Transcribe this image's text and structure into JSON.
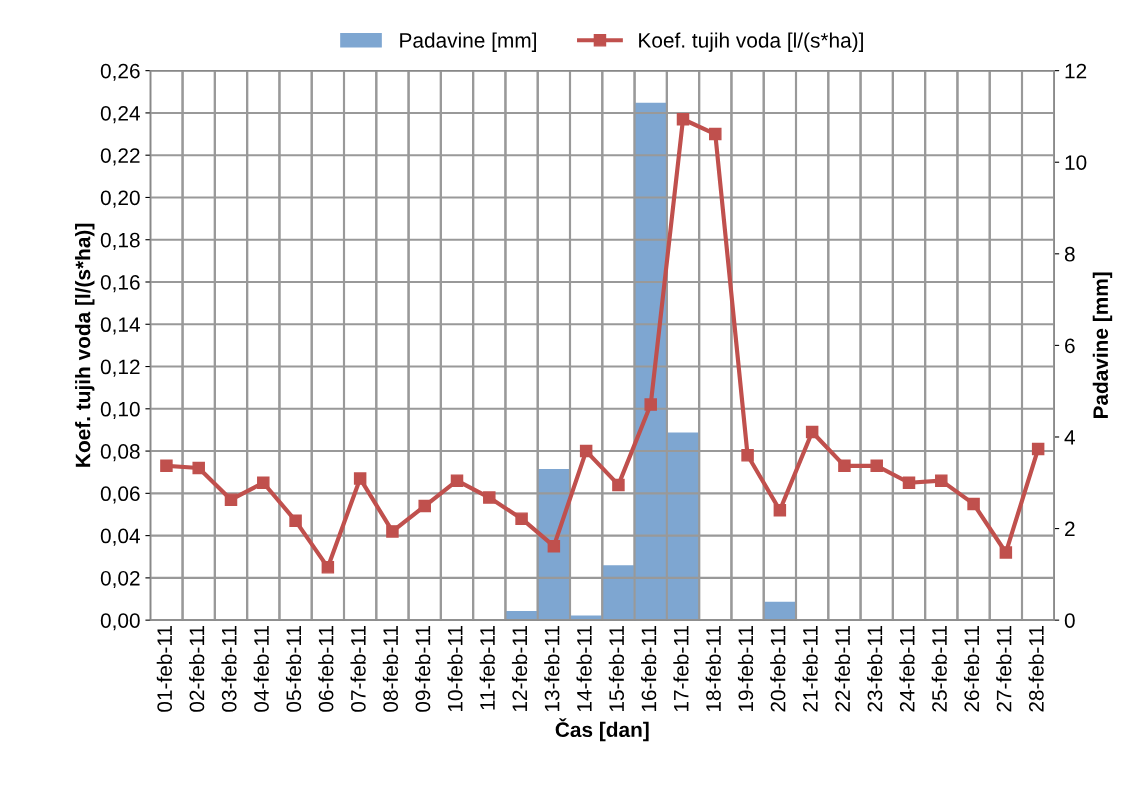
{
  "chart_data": {
    "type": "bar",
    "xlabel": "Čas [dan]",
    "ylabel": "Koef. tujih voda [l/(s*ha)]",
    "y2label": "Padavine [mm]",
    "categories": [
      "01-feb-11",
      "02-feb-11",
      "03-feb-11",
      "04-feb-11",
      "05-feb-11",
      "06-feb-11",
      "07-feb-11",
      "08-feb-11",
      "09-feb-11",
      "10-feb-11",
      "11-feb-11",
      "12-feb-11",
      "13-feb-11",
      "14-feb-11",
      "15-feb-11",
      "16-feb-11",
      "17-feb-11",
      "18-feb-11",
      "19-feb-11",
      "20-feb-11",
      "21-feb-11",
      "22-feb-11",
      "23-feb-11",
      "24-feb-11",
      "25-feb-11",
      "26-feb-11",
      "27-feb-11",
      "28-feb-11"
    ],
    "series": [
      {
        "name": "Padavine [mm]",
        "axis": "y2",
        "color": "#7ea6d1",
        "values": [
          0,
          0,
          0,
          0,
          0,
          0,
          0,
          0,
          0,
          0,
          0,
          0.2,
          3.3,
          0.1,
          1.2,
          11.3,
          4.1,
          0,
          0,
          0.4,
          0,
          0,
          0,
          0,
          0,
          0,
          0,
          0
        ]
      },
      {
        "name": "Koef. tujih voda [l/(s*ha)]",
        "type": "line",
        "axis": "y",
        "color": "#c0504d",
        "marker": "square",
        "values": [
          0.073,
          0.072,
          0.057,
          0.065,
          0.047,
          0.025,
          0.067,
          0.042,
          0.054,
          0.066,
          0.058,
          0.048,
          0.035,
          0.08,
          0.064,
          0.102,
          0.237,
          0.23,
          0.078,
          0.052,
          0.089,
          0.073,
          0.073,
          0.065,
          0.066,
          0.055,
          0.032,
          0.081
        ]
      }
    ],
    "ylim": [
      0,
      0.26
    ],
    "yticks": [
      {
        "value": 0,
        "label": "0,00"
      },
      {
        "value": 0.02,
        "label": "0,02"
      },
      {
        "value": 0.04,
        "label": "0,04"
      },
      {
        "value": 0.06,
        "label": "0,06"
      },
      {
        "value": 0.08,
        "label": "0,08"
      },
      {
        "value": 0.1,
        "label": "0,10"
      },
      {
        "value": 0.12,
        "label": "0,12"
      },
      {
        "value": 0.14,
        "label": "0,14"
      },
      {
        "value": 0.16,
        "label": "0,16"
      },
      {
        "value": 0.18,
        "label": "0,18"
      },
      {
        "value": 0.2,
        "label": "0,20"
      },
      {
        "value": 0.22,
        "label": "0,22"
      },
      {
        "value": 0.24,
        "label": "0,24"
      },
      {
        "value": 0.26,
        "label": "0,26"
      }
    ],
    "y2lim": [
      0,
      12
    ],
    "y2ticks": [
      0,
      2,
      4,
      6,
      8,
      10,
      12
    ],
    "grid": true,
    "legend": "top"
  }
}
